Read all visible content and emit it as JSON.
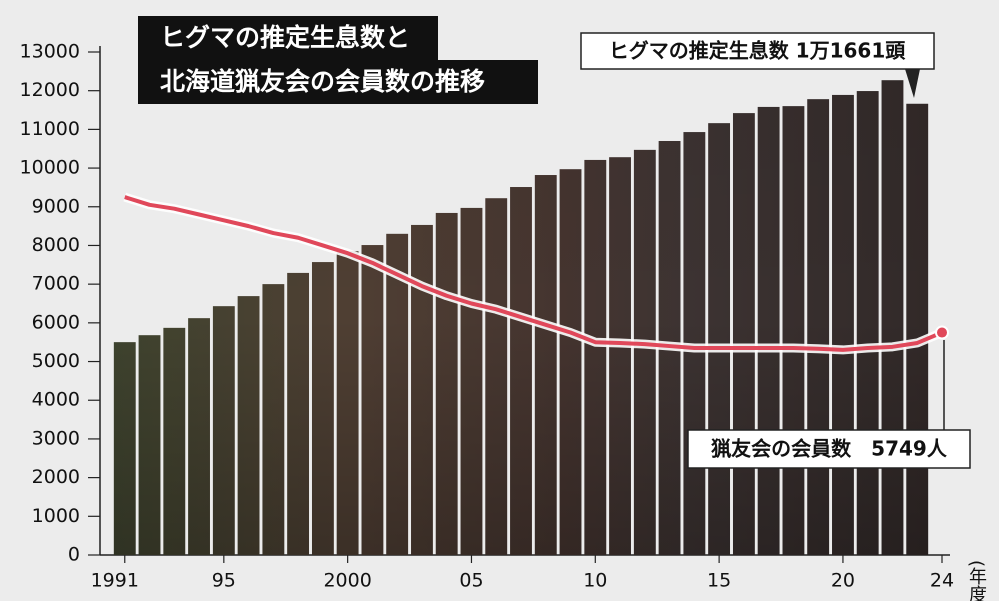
{
  "chart_data": {
    "type": "bar_line",
    "title_lines": [
      "ヒグマの推定生息数と",
      "北海道猟友会の会員数の推移"
    ],
    "annotations": [
      "ヒグマの推定生息数 1万1661頭",
      "猟友会の会員数　5749人"
    ],
    "x_unit": "(年度)",
    "x": [
      1991,
      1992,
      1993,
      1994,
      1995,
      1996,
      1997,
      1998,
      1999,
      2000,
      2001,
      2002,
      2003,
      2004,
      2005,
      2006,
      2007,
      2008,
      2009,
      2010,
      2011,
      2012,
      2013,
      2014,
      2015,
      2016,
      2017,
      2018,
      2019,
      2020,
      2021,
      2022,
      2023,
      2024
    ],
    "series": [
      {
        "type": "bar",
        "color": "#3b2c27",
        "values": [
          5500,
          5680,
          5870,
          6120,
          6430,
          6690,
          7000,
          7290,
          7570,
          7850,
          8010,
          8300,
          8530,
          8840,
          8970,
          9220,
          9510,
          9820,
          9970,
          10210,
          10280,
          10470,
          10700,
          10930,
          11160,
          11420,
          11580,
          11600,
          11780,
          11890,
          11990,
          12270,
          11661,
          null
        ]
      },
      {
        "type": "line",
        "color": "#e0485a",
        "values": [
          9250,
          9050,
          8950,
          8800,
          8650,
          8500,
          8320,
          8200,
          8000,
          7800,
          7550,
          7250,
          6950,
          6700,
          6500,
          6350,
          6150,
          5950,
          5750,
          5500,
          5480,
          5450,
          5400,
          5350,
          5350,
          5350,
          5350,
          5350,
          5330,
          5300,
          5350,
          5380,
          5480,
          5749
        ]
      }
    ],
    "xlim": [
      1990,
      2024
    ],
    "xticks": [
      1991,
      {
        "value": 1995,
        "label": "95"
      },
      2000,
      {
        "value": 2005,
        "label": "05"
      },
      {
        "value": 2010,
        "label": "10"
      },
      {
        "value": 2015,
        "label": "15"
      },
      {
        "value": 2020,
        "label": "20"
      },
      {
        "value": 2024,
        "label": "24"
      }
    ],
    "ylim": [
      0,
      13000
    ],
    "yticks": [
      0,
      1000,
      2000,
      3000,
      4000,
      5000,
      6000,
      7000,
      8000,
      9000,
      10000,
      11000,
      12000,
      13000
    ]
  }
}
